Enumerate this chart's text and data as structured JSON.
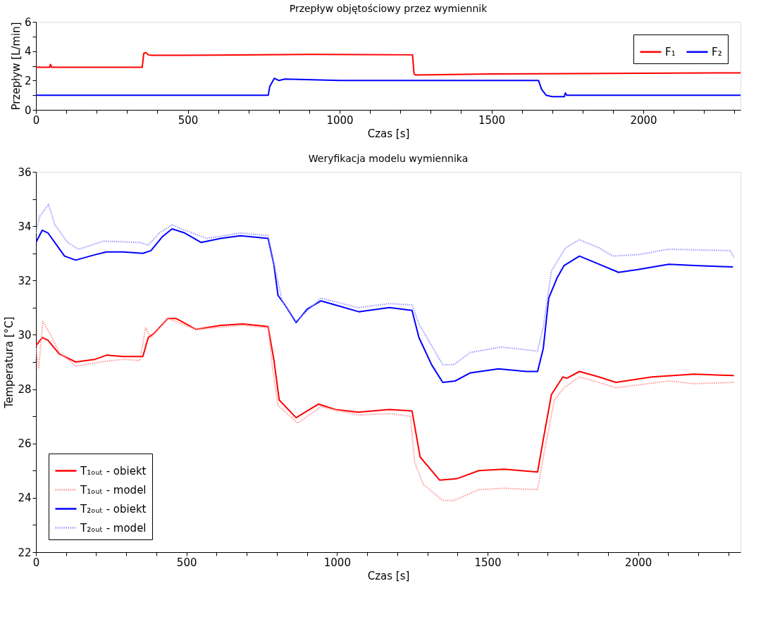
{
  "chart_data": [
    {
      "type": "line",
      "title": "Przepływ objętościowy przez wymiennik",
      "xlabel": "Czas [s]",
      "ylabel": "Przepływ [L/min]",
      "xlim": [
        0,
        2320
      ],
      "ylim": [
        0,
        6
      ],
      "xticks": [
        0,
        {
          "value": 100,
          "label": null
        },
        {
          "value": 200,
          "label": null
        },
        {
          "value": 300,
          "label": null
        },
        {
          "value": 400,
          "label": null
        },
        500,
        {
          "value": 600,
          "label": null
        },
        {
          "value": 700,
          "label": null
        },
        {
          "value": 800,
          "label": null
        },
        {
          "value": 900,
          "label": null
        },
        1000,
        {
          "value": 1100,
          "label": null
        },
        {
          "value": 1200,
          "label": null
        },
        {
          "value": 1300,
          "label": null
        },
        {
          "value": 1400,
          "label": null
        },
        1500,
        {
          "value": 1600,
          "label": null
        },
        {
          "value": 1700,
          "label": null
        },
        {
          "value": 1800,
          "label": null
        },
        {
          "value": 1900,
          "label": null
        },
        2000,
        {
          "value": 2100,
          "label": null
        },
        {
          "value": 2200,
          "label": null
        },
        {
          "value": 2300,
          "label": null
        }
      ],
      "yticks": [
        0,
        {
          "value": 1,
          "label": null
        },
        2,
        {
          "value": 3,
          "label": null
        },
        4,
        {
          "value": 5,
          "label": null
        },
        6
      ],
      "grid": false,
      "legend": "top right",
      "line_style": "solid",
      "series": [
        {
          "name": "F₁",
          "color": "#ff0000",
          "x": [
            0,
            45,
            48,
            52,
            55,
            350,
            355,
            362,
            370,
            380,
            600,
            900,
            1240,
            1245,
            1250,
            1500,
            2000,
            2320
          ],
          "values": [
            2.9,
            2.9,
            3.1,
            2.9,
            2.9,
            2.9,
            3.85,
            3.9,
            3.75,
            3.72,
            3.73,
            3.78,
            3.75,
            2.45,
            2.38,
            2.45,
            2.5,
            2.52
          ]
        },
        {
          "name": "F₂",
          "color": "#0000ff",
          "x": [
            0,
            400,
            765,
            770,
            778,
            785,
            800,
            820,
            1000,
            1300,
            1655,
            1665,
            1680,
            1700,
            1740,
            1743,
            1748,
            1760,
            2000,
            2320
          ],
          "values": [
            1.0,
            1.0,
            1.0,
            1.6,
            1.9,
            2.15,
            2.0,
            2.1,
            2.0,
            2.0,
            2.0,
            1.4,
            1.0,
            0.9,
            0.9,
            1.15,
            1.0,
            1.0,
            1.0,
            1.0
          ]
        }
      ]
    },
    {
      "type": "line",
      "title": "Weryfikacja modelu wymiennika",
      "xlabel": "Czas [s]",
      "ylabel": "Temperatura [°C]",
      "xlim": [
        0,
        2340
      ],
      "ylim": [
        22,
        36
      ],
      "xticks": [
        0,
        {
          "value": 100,
          "label": null
        },
        {
          "value": 200,
          "label": null
        },
        {
          "value": 300,
          "label": null
        },
        {
          "value": 400,
          "label": null
        },
        500,
        {
          "value": 600,
          "label": null
        },
        {
          "value": 700,
          "label": null
        },
        {
          "value": 800,
          "label": null
        },
        {
          "value": 900,
          "label": null
        },
        1000,
        {
          "value": 1100,
          "label": null
        },
        {
          "value": 1200,
          "label": null
        },
        {
          "value": 1300,
          "label": null
        },
        {
          "value": 1400,
          "label": null
        },
        1500,
        {
          "value": 1600,
          "label": null
        },
        {
          "value": 1700,
          "label": null
        },
        {
          "value": 1800,
          "label": null
        },
        {
          "value": 1900,
          "label": null
        },
        2000,
        {
          "value": 2100,
          "label": null
        },
        {
          "value": 2200,
          "label": null
        },
        {
          "value": 2300,
          "label": null
        }
      ],
      "yticks": [
        22,
        {
          "value": 23,
          "label": null
        },
        24,
        {
          "value": 25,
          "label": null
        },
        26,
        {
          "value": 27,
          "label": null
        },
        28,
        {
          "value": 29,
          "label": null
        },
        30,
        {
          "value": 31,
          "label": null
        },
        32,
        {
          "value": 33,
          "label": null
        },
        34,
        {
          "value": 35,
          "label": null
        },
        36
      ],
      "grid": false,
      "legend": "bottom left",
      "series": [
        {
          "name": "T₁ₒᵤₜ - obiekt",
          "color": "#ff0000",
          "line_style": "solid",
          "x": [
            0,
            21,
            40,
            77,
            132,
            197,
            234,
            290,
            355,
            373,
            392,
            438,
            466,
            531,
            614,
            688,
            771,
            790,
            808,
            864,
            938,
            994,
            1070,
            1174,
            1249,
            1276,
            1341,
            1397,
            1471,
            1555,
            1666,
            1685,
            1712,
            1750,
            1763,
            1805,
            1870,
            1926,
            2046,
            2186,
            2318
          ],
          "values": [
            29.6,
            29.9,
            29.8,
            29.3,
            29.0,
            29.1,
            29.25,
            29.2,
            29.2,
            29.9,
            30.05,
            30.6,
            30.6,
            30.2,
            30.35,
            30.4,
            30.3,
            29.1,
            27.6,
            26.95,
            27.45,
            27.25,
            27.15,
            27.25,
            27.2,
            25.5,
            24.65,
            24.7,
            25.0,
            25.05,
            24.95,
            26.15,
            27.8,
            28.45,
            28.4,
            28.65,
            28.45,
            28.25,
            28.45,
            28.55,
            28.5
          ]
        },
        {
          "name": "T₁ₒᵤₜ - model",
          "color": "#ff9999",
          "line_style": "dotted",
          "x": [
            0,
            9,
            23,
            49,
            77,
            132,
            216,
            290,
            345,
            364,
            382,
            438,
            531,
            688,
            771,
            785,
            804,
            869,
            947,
            1070,
            1174,
            1244,
            1258,
            1286,
            1351,
            1388,
            1471,
            1555,
            1666,
            1685,
            1722,
            1754,
            1805,
            1870,
            1926,
            2102,
            2186,
            2318
          ],
          "values": [
            29.5,
            28.75,
            30.5,
            30.0,
            29.35,
            28.85,
            29.0,
            29.1,
            29.05,
            30.25,
            29.9,
            30.6,
            30.2,
            30.35,
            30.25,
            28.85,
            27.4,
            26.75,
            27.35,
            27.05,
            27.1,
            27.0,
            25.3,
            24.5,
            23.9,
            23.9,
            24.3,
            24.35,
            24.3,
            25.5,
            27.6,
            28.05,
            28.45,
            28.25,
            28.05,
            28.3,
            28.2,
            28.25
          ]
        },
        {
          "name": "T₂ₒᵤₜ - obiekt",
          "color": "#0000ff",
          "line_style": "solid",
          "x": [
            0,
            21,
            40,
            95,
            132,
            197,
            234,
            290,
            355,
            382,
            419,
            452,
            494,
            549,
            614,
            679,
            771,
            790,
            804,
            827,
            864,
            901,
            947,
            994,
            1072,
            1174,
            1249,
            1272,
            1314,
            1351,
            1392,
            1443,
            1536,
            1629,
            1666,
            1685,
            1703,
            1731,
            1754,
            1805,
            1870,
            1935,
            1999,
            2102,
            2186,
            2315
          ],
          "values": [
            33.4,
            33.85,
            33.75,
            32.9,
            32.75,
            32.95,
            33.05,
            33.05,
            33.0,
            33.1,
            33.6,
            33.9,
            33.75,
            33.4,
            33.55,
            33.65,
            33.55,
            32.6,
            31.45,
            31.1,
            30.45,
            30.95,
            31.25,
            31.1,
            30.85,
            31.0,
            30.9,
            29.9,
            28.9,
            28.25,
            28.3,
            28.6,
            28.75,
            28.65,
            28.65,
            29.5,
            31.35,
            32.1,
            32.55,
            32.9,
            32.6,
            32.3,
            32.4,
            32.6,
            32.55,
            32.5
          ]
        },
        {
          "name": "T₂ₒᵤₜ - model",
          "color": "#9999ff",
          "line_style": "dotted",
          "x": [
            0,
            12,
            42,
            63,
            105,
            142,
            225,
            345,
            373,
            410,
            452,
            494,
            568,
            679,
            771,
            795,
            818,
            864,
            947,
            1070,
            1174,
            1249,
            1272,
            1351,
            1388,
            1443,
            1545,
            1666,
            1685,
            1712,
            1759,
            1805,
            1870,
            1916,
            1999,
            2102,
            2306,
            2318
          ],
          "values": [
            33.75,
            34.35,
            34.8,
            34.05,
            33.4,
            33.15,
            33.45,
            33.4,
            33.3,
            33.75,
            34.05,
            33.85,
            33.55,
            33.75,
            33.65,
            32.4,
            31.25,
            30.5,
            31.35,
            31.0,
            31.15,
            31.1,
            30.4,
            28.9,
            28.9,
            29.35,
            29.55,
            29.4,
            30.3,
            32.35,
            33.2,
            33.5,
            33.2,
            32.9,
            32.95,
            33.15,
            33.1,
            32.85
          ]
        }
      ]
    }
  ]
}
